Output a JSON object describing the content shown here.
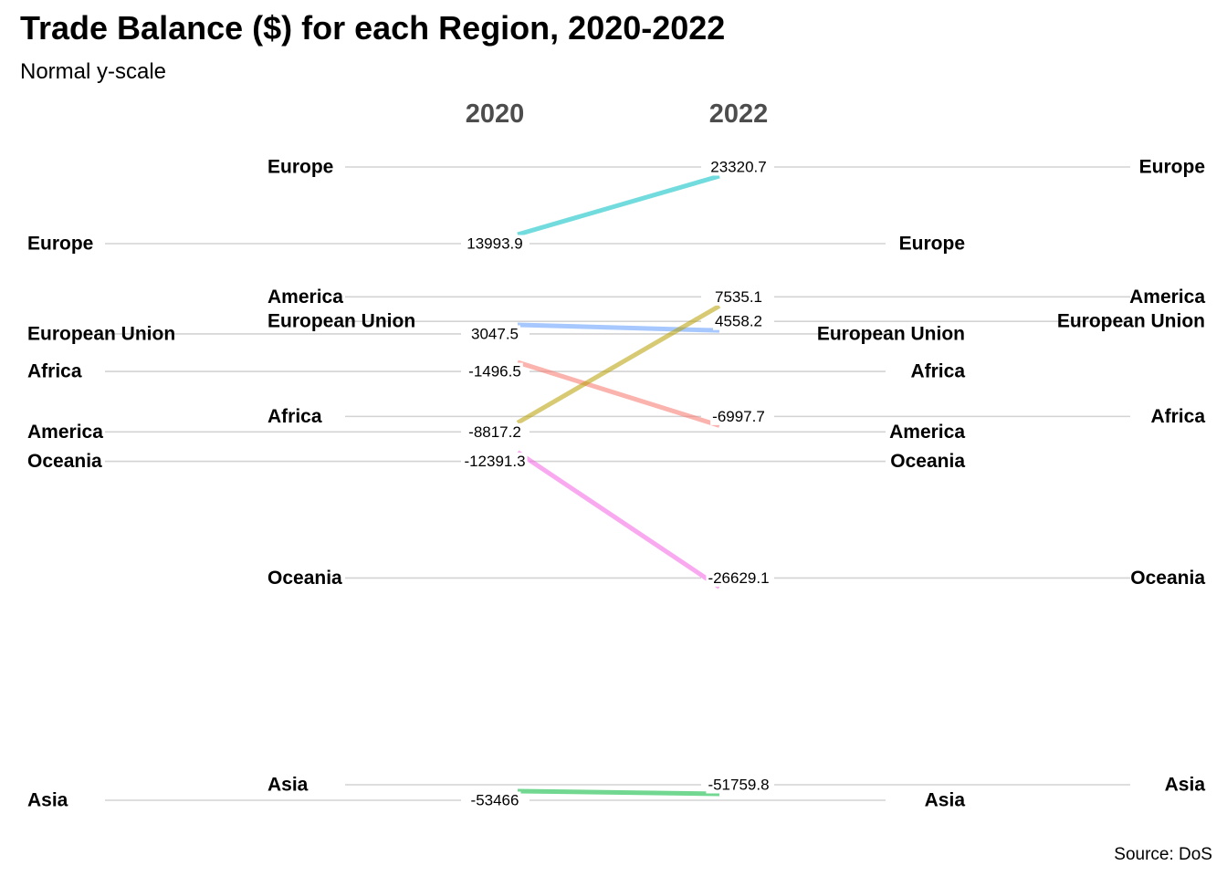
{
  "chart_data": {
    "type": "line",
    "title": "Trade Balance ($) for each Region, 2020-2022",
    "subtitle": "Normal y-scale",
    "caption": "Source: DoS",
    "x": [
      "2020",
      "2022"
    ],
    "series": [
      {
        "name": "Europe",
        "values": [
          13993.9,
          23320.7
        ],
        "labels": [
          "13993.9",
          "23320.7"
        ],
        "color": "#00BFC4"
      },
      {
        "name": "European Union",
        "values": [
          3047.5,
          4558.2
        ],
        "labels": [
          "3047.5",
          "4558.2"
        ],
        "color": "#619CFF"
      },
      {
        "name": "Africa",
        "values": [
          -1496.5,
          -6997.7
        ],
        "labels": [
          "-1496.5",
          "-6997.7"
        ],
        "color": "#F8766D"
      },
      {
        "name": "America",
        "values": [
          -8817.2,
          7535.1
        ],
        "labels": [
          "-8817.2",
          "7535.1"
        ],
        "color": "#B79F00"
      },
      {
        "name": "Oceania",
        "values": [
          -12391.3,
          -26629.1
        ],
        "labels": [
          "-12391.3",
          "-26629.1"
        ],
        "color": "#F564E3"
      },
      {
        "name": "Asia",
        "values": [
          -53466,
          -51759.8
        ],
        "labels": [
          "-53466",
          "-51759.8"
        ],
        "color": "#00BA38"
      }
    ],
    "legend": "none",
    "grid": false
  }
}
